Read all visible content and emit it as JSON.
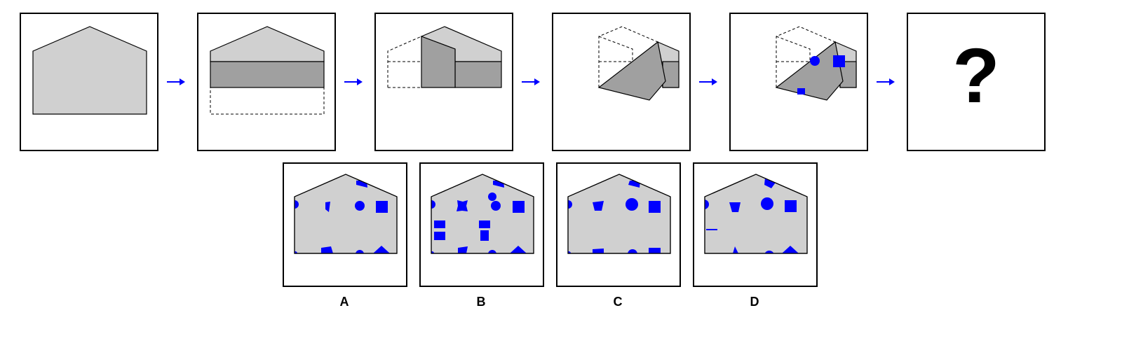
{
  "puzzle": {
    "unknown_mark": "?",
    "options": [
      {
        "label": "A"
      },
      {
        "label": "B"
      },
      {
        "label": "C"
      },
      {
        "label": "D"
      }
    ]
  },
  "colors": {
    "shape_fill": "#d0d0d0",
    "fold_fill": "#a0a0a0",
    "punch_fill": "#0000ff",
    "arrow": "#0000ff",
    "outline": "#000000"
  }
}
